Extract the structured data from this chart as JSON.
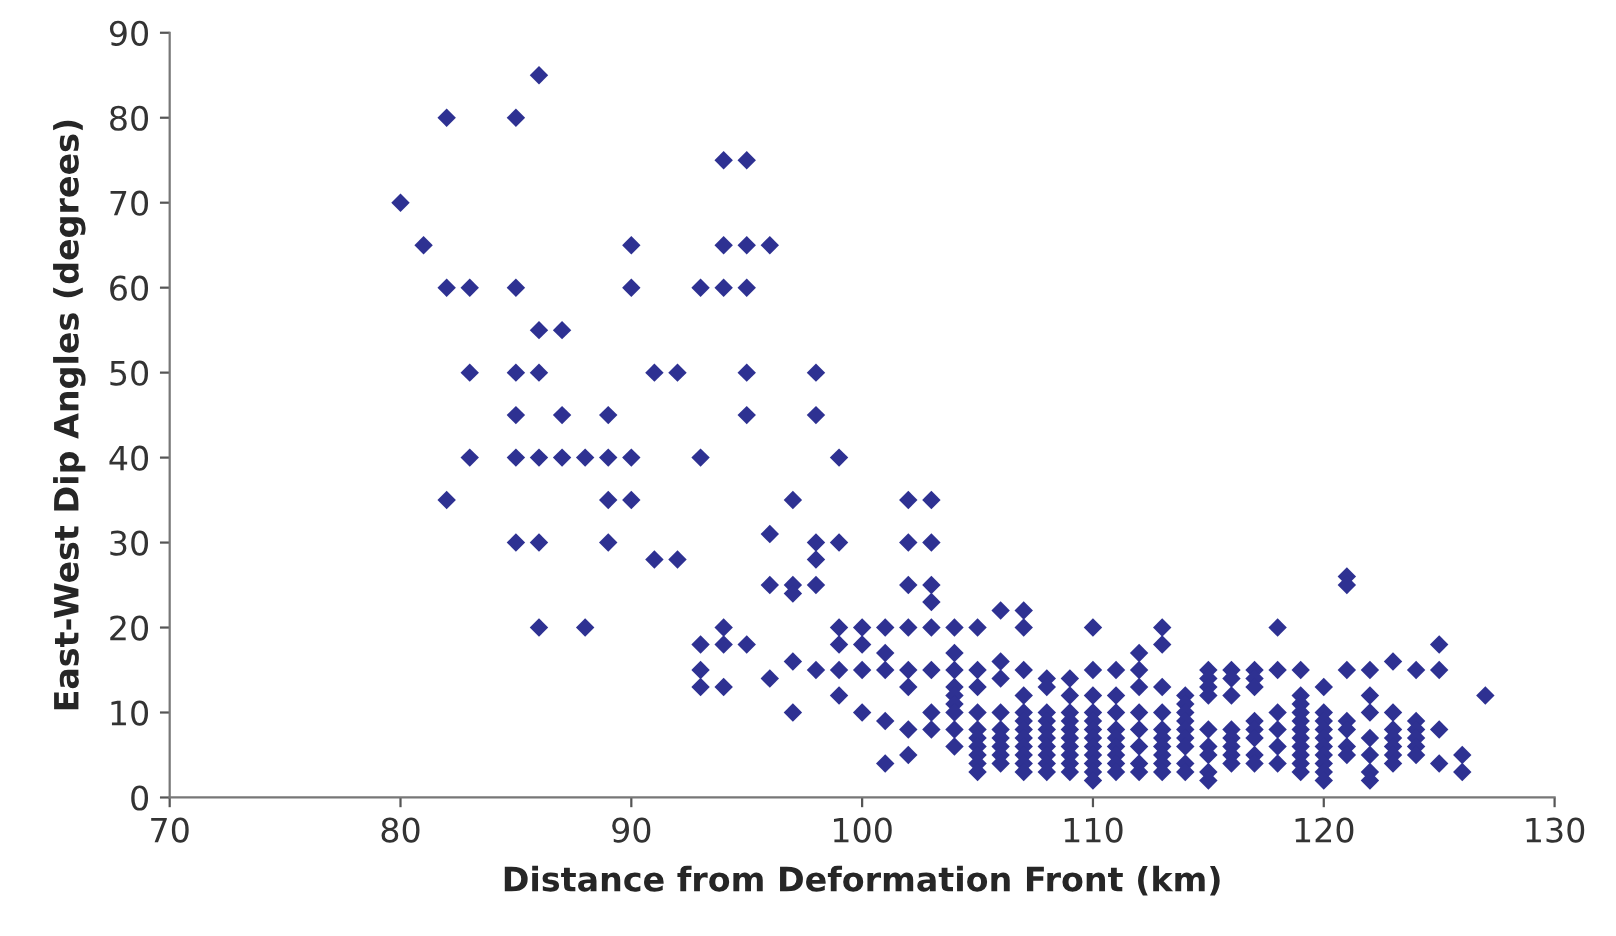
{
  "chart_data": {
    "type": "scatter",
    "xlabel": "Distance from Deformation Front (km)",
    "ylabel": "East-West Dip Angles (degrees)",
    "xlim": [
      70,
      130
    ],
    "xticks": [
      70,
      80,
      90,
      100,
      110,
      120,
      130
    ],
    "ylim": [
      0,
      90
    ],
    "yticks": [
      0,
      10,
      20,
      30,
      40,
      50,
      60,
      70,
      80,
      90
    ],
    "grid": false,
    "legend": false,
    "marker": "diamond",
    "series": [
      {
        "color": "#2e3192",
        "x": [
          80,
          81,
          82,
          82,
          82,
          83,
          83,
          83,
          85,
          85,
          85,
          85,
          85,
          85,
          86,
          86,
          86,
          86,
          86,
          86,
          87,
          87,
          87,
          88,
          88,
          89,
          89,
          89,
          89,
          90,
          90,
          90,
          90,
          91,
          91,
          92,
          92,
          93,
          93,
          93,
          93,
          93,
          94,
          94,
          94,
          94,
          94,
          94,
          95,
          95,
          95,
          95,
          95,
          95,
          96,
          96,
          96,
          96,
          97,
          97,
          97,
          97,
          97,
          98,
          98,
          98,
          98,
          98,
          98,
          99,
          99,
          99,
          99,
          99,
          99,
          100,
          100,
          100,
          100,
          101,
          101,
          101,
          101,
          101,
          102,
          102,
          102,
          102,
          102,
          102,
          102,
          102,
          103,
          103,
          103,
          103,
          103,
          103,
          103,
          103,
          104,
          104,
          104,
          104,
          104,
          104,
          104,
          104,
          104,
          105,
          105,
          105,
          105,
          105,
          105,
          105,
          105,
          105,
          105,
          106,
          106,
          106,
          106,
          106,
          106,
          106,
          106,
          106,
          107,
          107,
          107,
          107,
          107,
          107,
          107,
          107,
          107,
          107,
          107,
          107,
          108,
          108,
          108,
          108,
          108,
          108,
          108,
          108,
          108,
          108,
          109,
          109,
          109,
          109,
          109,
          109,
          109,
          109,
          109,
          109,
          110,
          110,
          110,
          110,
          110,
          110,
          110,
          110,
          110,
          110,
          110,
          110,
          111,
          111,
          111,
          111,
          111,
          111,
          111,
          111,
          111,
          112,
          112,
          112,
          112,
          112,
          112,
          112,
          112,
          113,
          113,
          113,
          113,
          113,
          113,
          113,
          113,
          113,
          113,
          114,
          114,
          114,
          114,
          114,
          114,
          114,
          114,
          114,
          115,
          115,
          115,
          115,
          115,
          115,
          115,
          115,
          115,
          116,
          116,
          116,
          116,
          116,
          116,
          116,
          116,
          117,
          117,
          117,
          117,
          117,
          117,
          117,
          117,
          118,
          118,
          118,
          118,
          118,
          118,
          119,
          119,
          119,
          119,
          119,
          119,
          119,
          119,
          119,
          119,
          119,
          120,
          120,
          120,
          120,
          120,
          120,
          120,
          120,
          120,
          120,
          121,
          121,
          121,
          121,
          121,
          121,
          121,
          122,
          122,
          122,
          122,
          122,
          122,
          122,
          123,
          123,
          123,
          123,
          123,
          123,
          123,
          124,
          124,
          124,
          124,
          124,
          124,
          125,
          125,
          125,
          125,
          126,
          126,
          127
        ],
        "values": [
          70,
          65,
          80,
          60,
          35,
          60,
          50,
          40,
          80,
          60,
          50,
          45,
          40,
          30,
          85,
          55,
          50,
          40,
          30,
          20,
          55,
          45,
          40,
          40,
          20,
          45,
          40,
          35,
          30,
          65,
          60,
          40,
          35,
          50,
          28,
          50,
          28,
          60,
          40,
          18,
          15,
          13,
          75,
          65,
          60,
          20,
          18,
          13,
          75,
          65,
          60,
          50,
          45,
          18,
          65,
          31,
          25,
          14,
          35,
          25,
          24,
          16,
          10,
          50,
          45,
          30,
          28,
          25,
          15,
          40,
          30,
          20,
          18,
          15,
          12,
          20,
          18,
          15,
          10,
          20,
          17,
          15,
          9,
          4,
          35,
          30,
          25,
          20,
          15,
          13,
          8,
          5,
          35,
          30,
          25,
          23,
          20,
          15,
          10,
          8,
          20,
          17,
          15,
          13,
          12,
          11,
          10,
          8,
          6,
          20,
          15,
          13,
          10,
          8,
          7,
          6,
          5,
          4,
          3,
          22,
          16,
          14,
          10,
          8,
          7,
          6,
          5,
          4,
          22,
          20,
          15,
          12,
          10,
          9,
          8,
          7,
          6,
          5,
          4,
          3,
          14,
          13,
          10,
          9,
          8,
          7,
          6,
          5,
          4,
          3,
          14,
          12,
          10,
          9,
          8,
          7,
          6,
          5,
          4,
          3,
          20,
          15,
          12,
          10,
          9,
          8,
          7,
          6,
          5,
          4,
          3,
          2,
          15,
          12,
          10,
          8,
          7,
          6,
          5,
          4,
          3,
          17,
          15,
          13,
          10,
          8,
          6,
          4,
          3,
          20,
          18,
          13,
          10,
          8,
          7,
          6,
          5,
          4,
          3,
          12,
          11,
          10,
          9,
          8,
          7,
          6,
          4,
          3,
          15,
          14,
          13,
          12,
          8,
          6,
          5,
          3,
          2,
          15,
          14,
          12,
          8,
          7,
          6,
          5,
          4,
          15,
          14,
          13,
          9,
          8,
          7,
          5,
          4,
          20,
          15,
          10,
          8,
          6,
          4,
          15,
          12,
          11,
          10,
          9,
          8,
          7,
          6,
          5,
          4,
          3,
          13,
          10,
          9,
          8,
          7,
          6,
          5,
          4,
          3,
          2,
          26,
          25,
          15,
          9,
          8,
          6,
          5,
          15,
          12,
          10,
          7,
          5,
          3,
          2,
          16,
          10,
          8,
          7,
          6,
          5,
          4,
          15,
          9,
          8,
          7,
          6,
          5,
          18,
          15,
          8,
          4,
          5,
          3,
          12
        ]
      }
    ]
  }
}
